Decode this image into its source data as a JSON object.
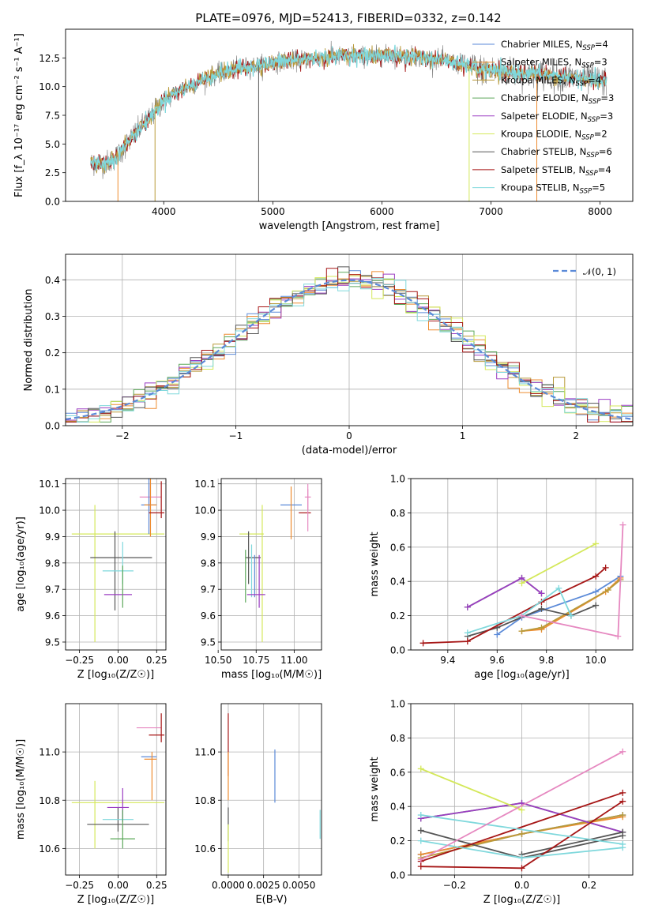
{
  "figure": {
    "title": "PLATE=0976, MJD=52413, FIBERID=0332, z=0.142"
  },
  "colors": {
    "chabrier_miles": "#5b8ad8",
    "salpeter_miles": "#ee8c30",
    "kroupa_miles": "#b89a3a",
    "chabrier_elodie": "#5ca85a",
    "salpeter_elodie": "#9b3cc2",
    "kroupa_elodie": "#d4e85a",
    "chabrier_stelib": "#555555",
    "salpeter_stelib": "#a61616",
    "kroupa_stelib": "#7fd8dc",
    "pink": "#e688c0",
    "gauss": "#5b8ad8",
    "grid": "#b0b0b0"
  },
  "chart_data": [
    {
      "id": "spectrum",
      "type": "line",
      "title": "PLATE=0976, MJD=52413, FIBERID=0332, z=0.142",
      "xlabel": "wavelength [Angstrom, rest frame]",
      "ylabel": "Flux [f_λ 10⁻¹⁷ erg cm⁻² s⁻¹ A⁻¹]",
      "xlim": [
        3100,
        8300
      ],
      "ylim": [
        0,
        15
      ],
      "xticks": [
        4000,
        5000,
        6000,
        7000,
        8000
      ],
      "yticks": [
        0.0,
        2.5,
        5.0,
        7.5,
        10.0,
        12.5
      ],
      "legend_position": "top-right",
      "legend": [
        "Chabrier MILES, N_SSP=4",
        "Salpeter MILES, N_SSP=3",
        "Kroupa MILES, N_SSP=4",
        "Chabrier ELODIE, N_SSP=3",
        "Salpeter ELODIE, N_SSP=3",
        "Kroupa ELODIE, N_SSP=2",
        "Chabrier STELIB, N_SSP=6",
        "Salpeter STELIB, N_SSP=4",
        "Kroupa STELIB, N_SSP=5"
      ],
      "continuum": {
        "x": [
          3330,
          3500,
          3600,
          3700,
          3800,
          3900,
          4000,
          4100,
          4200,
          4300,
          4400,
          4500,
          4600,
          4700,
          4800,
          4900,
          5000,
          5100,
          5200,
          5300,
          5400,
          5500,
          5600,
          5700,
          5800,
          5900,
          6000,
          6100,
          6200,
          6300,
          6400,
          6500,
          6600,
          6700,
          6800,
          6900,
          7000,
          7100,
          7200,
          7300,
          7400,
          7500,
          7600,
          7700,
          7800,
          7900,
          8000,
          8060
        ],
        "y": [
          3.3,
          3.4,
          4.2,
          5.5,
          6.5,
          7.6,
          8.8,
          9.4,
          9.9,
          10.3,
          10.8,
          11.1,
          11.4,
          11.6,
          11.8,
          11.9,
          12.1,
          12.2,
          12.3,
          12.4,
          12.5,
          12.6,
          12.6,
          12.7,
          12.7,
          12.6,
          12.7,
          12.7,
          12.6,
          12.6,
          12.5,
          12.4,
          12.2,
          12.0,
          11.8,
          11.5,
          11.4,
          11.3,
          11.2,
          11.2,
          11.1,
          11.0,
          10.9,
          10.8,
          10.7,
          10.6,
          10.5,
          10.4
        ]
      },
      "dips": [
        {
          "x": 3580,
          "y": 0.0
        },
        {
          "x": 3920,
          "y": 0.0
        },
        {
          "x": 4870,
          "y": 0.0
        },
        {
          "x": 6800,
          "y": 0.0
        },
        {
          "x": 7420,
          "y": 0.0
        }
      ]
    },
    {
      "id": "residuals",
      "type": "line",
      "xlabel": "(data-model)/error",
      "ylabel": "Normed distribution",
      "xlim": [
        -2.5,
        2.5
      ],
      "ylim": [
        0,
        0.47
      ],
      "xticks": [
        -2,
        -1,
        0,
        1,
        2
      ],
      "yticks": [
        0.0,
        0.1,
        0.2,
        0.3,
        0.4
      ],
      "grid": true,
      "legend_position": "top-right",
      "gauss_label": "𝒩(0, 1)",
      "bin_width": 0.1
    },
    {
      "id": "age-vs-Z",
      "type": "scatter",
      "xlabel": "Z [log₁₀(Z/Z☉)]",
      "ylabel": "age  [log₁₀(age/yr)]",
      "xlim": [
        -0.34,
        0.31
      ],
      "ylim": [
        9.47,
        10.12
      ],
      "xticks": [
        -0.25,
        0.0,
        0.25
      ],
      "yticks": [
        9.5,
        9.6,
        9.7,
        9.8,
        9.9,
        10.0,
        10.1
      ],
      "grid": true,
      "points": [
        {
          "c": "kroupa_elodie",
          "x": 0.0,
          "xerr": 0.3,
          "y": 9.91,
          "yerr": 0.0
        },
        {
          "c": "kroupa_elodie",
          "x": -0.15,
          "xerr": 0.0,
          "y": 9.76,
          "yerr": 0.26
        },
        {
          "c": "chabrier_stelib",
          "x": -0.02,
          "xerr": 0.0,
          "y": 9.77,
          "yerr": 0.15
        },
        {
          "c": "chabrier_stelib",
          "x": 0.02,
          "xerr": 0.2,
          "y": 9.82,
          "yerr": 0.0
        },
        {
          "c": "kroupa_stelib",
          "x": 0.03,
          "xerr": 0.0,
          "y": 9.8,
          "yerr": 0.08
        },
        {
          "c": "kroupa_stelib",
          "x": 0.0,
          "xerr": 0.1,
          "y": 9.77,
          "yerr": 0.0
        },
        {
          "c": "salpeter_elodie",
          "x": 0.0,
          "xerr": 0.09,
          "y": 9.68,
          "yerr": 0.0
        },
        {
          "c": "chabrier_elodie",
          "x": 0.03,
          "xerr": 0.0,
          "y": 9.71,
          "yerr": 0.08
        },
        {
          "c": "pink",
          "x": 0.21,
          "xerr": 0.07,
          "y": 10.05,
          "yerr": 0.05
        },
        {
          "c": "chabrier_miles",
          "x": 0.2,
          "xerr": 0.05,
          "y": 10.02,
          "yerr": 0.11
        },
        {
          "c": "salpeter_miles",
          "x": 0.21,
          "xerr": 0.04,
          "y": 10.02,
          "yerr": 0.12
        },
        {
          "c": "salpeter_stelib",
          "x": 0.25,
          "xerr": 0.05,
          "y": 9.99,
          "yerr": 0.0
        },
        {
          "c": "salpeter_stelib",
          "x": 0.28,
          "xerr": 0.0,
          "y": 10.04,
          "yerr": 0.07
        }
      ]
    },
    {
      "id": "age-vs-mass",
      "type": "scatter",
      "xlabel": "mass [log₁₀(M/M☉)]",
      "xlim": [
        10.52,
        11.18
      ],
      "ylim": [
        9.47,
        10.12
      ],
      "xticks": [
        10.5,
        10.75,
        11.0
      ],
      "yticks": [
        9.5,
        9.6,
        9.7,
        9.8,
        9.9,
        10.0,
        10.1
      ],
      "grid": true,
      "points": [
        {
          "c": "kroupa_elodie",
          "x": 10.72,
          "xerr": 0.08,
          "y": 9.91,
          "yerr": 0.0
        },
        {
          "c": "kroupa_elodie",
          "x": 10.79,
          "xerr": 0.0,
          "y": 9.76,
          "yerr": 0.26
        },
        {
          "c": "chabrier_stelib",
          "x": 10.7,
          "xerr": 0.0,
          "y": 9.82,
          "yerr": 0.1
        },
        {
          "c": "chabrier_stelib",
          "x": 10.73,
          "xerr": 0.05,
          "y": 9.82,
          "yerr": 0.0
        },
        {
          "c": "kroupa_stelib",
          "x": 10.72,
          "xerr": 0.0,
          "y": 9.77,
          "yerr": 0.1
        },
        {
          "c": "chabrier_miles",
          "x": 10.74,
          "xerr": 0.0,
          "y": 9.75,
          "yerr": 0.08
        },
        {
          "c": "salpeter_elodie",
          "x": 10.75,
          "xerr": 0.06,
          "y": 9.68,
          "yerr": 0.0
        },
        {
          "c": "salpeter_elodie",
          "x": 10.77,
          "xerr": 0.0,
          "y": 9.73,
          "yerr": 0.1
        },
        {
          "c": "chabrier_elodie",
          "x": 10.68,
          "xerr": 0.0,
          "y": 9.75,
          "yerr": 0.1
        },
        {
          "c": "chabrier_miles",
          "x": 10.98,
          "xerr": 0.07,
          "y": 10.02,
          "yerr": 0.0
        },
        {
          "c": "salpeter_miles",
          "x": 10.98,
          "xerr": 0.0,
          "y": 9.99,
          "yerr": 0.1
        },
        {
          "c": "pink",
          "x": 11.09,
          "xerr": 0.02,
          "y": 10.05,
          "yerr": 0.05
        },
        {
          "c": "salpeter_stelib",
          "x": 11.07,
          "xerr": 0.04,
          "y": 9.99,
          "yerr": 0.0
        },
        {
          "c": "pink",
          "x": 11.09,
          "xerr": 0.0,
          "y": 10.0,
          "yerr": 0.08
        }
      ]
    },
    {
      "id": "weight-vs-age",
      "type": "line",
      "xlabel": "age  [log₁₀(age/yr)]",
      "ylabel": "mass weight",
      "xlim": [
        9.25,
        10.15
      ],
      "ylim": [
        0,
        1
      ],
      "xticks": [
        9.4,
        9.6,
        9.8,
        10.0
      ],
      "yticks": [
        0.0,
        0.2,
        0.4,
        0.6,
        0.8,
        1.0
      ],
      "grid": true,
      "series": [
        {
          "c": "chabrier_miles",
          "x": [
            9.6,
            9.7,
            10.0,
            10.1
          ],
          "y": [
            0.09,
            0.19,
            0.34,
            0.43
          ]
        },
        {
          "c": "salpeter_miles",
          "x": [
            9.7,
            9.78,
            10.04,
            10.1
          ],
          "y": [
            0.11,
            0.12,
            0.34,
            0.42
          ]
        },
        {
          "c": "kroupa_miles",
          "x": [
            9.7,
            9.78,
            10.05,
            10.1
          ],
          "y": [
            0.11,
            0.13,
            0.35,
            0.41
          ]
        },
        {
          "c": "chabrier_elodie",
          "x": [
            9.48,
            9.7,
            9.78
          ],
          "y": [
            0.25,
            0.42,
            0.33
          ]
        },
        {
          "c": "salpeter_elodie",
          "x": [
            9.48,
            9.7,
            9.78
          ],
          "y": [
            0.25,
            0.42,
            0.33
          ]
        },
        {
          "c": "kroupa_elodie",
          "x": [
            9.7,
            10.0
          ],
          "y": [
            0.39,
            0.62
          ]
        },
        {
          "c": "chabrier_stelib",
          "x": [
            9.48,
            9.6,
            9.78,
            9.9,
            10.0
          ],
          "y": [
            0.08,
            0.13,
            0.24,
            0.2,
            0.26
          ]
        },
        {
          "c": "salpeter_stelib",
          "x": [
            9.3,
            9.48,
            9.78,
            10.0,
            10.04
          ],
          "y": [
            0.04,
            0.05,
            0.28,
            0.43,
            0.48
          ]
        },
        {
          "c": "kroupa_stelib",
          "x": [
            9.48,
            9.7,
            9.85,
            9.9
          ],
          "y": [
            0.1,
            0.2,
            0.36,
            0.2
          ]
        },
        {
          "c": "pink",
          "x": [
            9.7,
            10.09,
            10.11
          ],
          "y": [
            0.2,
            0.08,
            0.73
          ]
        }
      ]
    },
    {
      "id": "mass-vs-Z",
      "type": "scatter",
      "xlabel": "Z [log₁₀(Z/Z☉)]",
      "ylabel": "mass [log₁₀(M/M☉)]",
      "xlim": [
        -0.34,
        0.31
      ],
      "ylim": [
        10.49,
        11.2
      ],
      "xticks": [
        -0.25,
        0.0,
        0.25
      ],
      "yticks": [
        10.6,
        10.8,
        11.0
      ],
      "grid": true,
      "points": [
        {
          "c": "kroupa_elodie",
          "x": 0.0,
          "xerr": 0.3,
          "y": 10.79,
          "yerr": 0.0
        },
        {
          "c": "kroupa_elodie",
          "x": -0.15,
          "xerr": 0.0,
          "y": 10.74,
          "yerr": 0.14
        },
        {
          "c": "chabrier_stelib",
          "x": 0.0,
          "xerr": 0.2,
          "y": 10.7,
          "yerr": 0.0
        },
        {
          "c": "chabrier_stelib",
          "x": 0.0,
          "xerr": 0.0,
          "y": 10.72,
          "yerr": 0.05
        },
        {
          "c": "salpeter_elodie",
          "x": 0.0,
          "xerr": 0.07,
          "y": 10.77,
          "yerr": 0.0
        },
        {
          "c": "salpeter_elodie",
          "x": 0.03,
          "xerr": 0.0,
          "y": 10.78,
          "yerr": 0.07
        },
        {
          "c": "kroupa_stelib",
          "x": 0.0,
          "xerr": 0.1,
          "y": 10.72,
          "yerr": 0.0
        },
        {
          "c": "chabrier_elodie",
          "x": 0.03,
          "xerr": 0.0,
          "y": 10.68,
          "yerr": 0.08
        },
        {
          "c": "chabrier_elodie",
          "x": 0.03,
          "xerr": 0.08,
          "y": 10.64,
          "yerr": 0.0
        },
        {
          "c": "pink",
          "x": 0.2,
          "xerr": 0.08,
          "y": 11.1,
          "yerr": 0.0
        },
        {
          "c": "chabrier_miles",
          "x": 0.2,
          "xerr": 0.05,
          "y": 10.98,
          "yerr": 0.0
        },
        {
          "c": "salpeter_miles",
          "x": 0.21,
          "xerr": 0.04,
          "y": 10.97,
          "yerr": 0.0
        },
        {
          "c": "salpeter_miles",
          "x": 0.22,
          "xerr": 0.0,
          "y": 10.9,
          "yerr": 0.1
        },
        {
          "c": "salpeter_stelib",
          "x": 0.25,
          "xerr": 0.05,
          "y": 11.07,
          "yerr": 0.0
        },
        {
          "c": "salpeter_stelib",
          "x": 0.28,
          "xerr": 0.0,
          "y": 11.1,
          "yerr": 0.06
        }
      ]
    },
    {
      "id": "mass-vs-ebv",
      "type": "scatter",
      "xlabel": "E(B-V)",
      "xlim": [
        -0.0005,
        0.0066
      ],
      "ylim": [
        10.49,
        11.2
      ],
      "xticks": [
        0.0,
        0.0025,
        0.005
      ],
      "xticklabels": [
        "0.0000",
        "0.0025",
        "0.0050"
      ],
      "yticks": [
        10.6,
        10.8,
        11.0
      ],
      "grid": true,
      "points": [
        {
          "c": "salpeter_stelib",
          "x": 0.0,
          "xerr": 0.0,
          "y": 11.03,
          "yerr": 0.13
        },
        {
          "c": "salpeter_miles",
          "x": 0.0,
          "xerr": 0.0,
          "y": 10.9,
          "yerr": 0.1
        },
        {
          "c": "chabrier_stelib",
          "x": 0.0,
          "xerr": 0.0,
          "y": 10.7,
          "yerr": 0.07
        },
        {
          "c": "kroupa_elodie",
          "x": 0.0,
          "xerr": 0.0,
          "y": 10.6,
          "yerr": 0.1
        },
        {
          "c": "chabrier_miles",
          "x": 0.0033,
          "xerr": 0.0,
          "y": 10.9,
          "yerr": 0.11
        },
        {
          "c": "kroupa_stelib",
          "x": 0.0065,
          "xerr": 0.0,
          "y": 10.7,
          "yerr": 0.06
        }
      ]
    },
    {
      "id": "weight-vs-Z",
      "type": "line",
      "xlabel": "Z [log₁₀(Z/Z☉)]",
      "ylabel": "mass weight",
      "xlim": [
        -0.33,
        0.33
      ],
      "ylim": [
        0,
        1
      ],
      "xticks": [
        -0.2,
        0.0,
        0.2
      ],
      "yticks": [
        0.0,
        0.2,
        0.4,
        0.6,
        0.8,
        1.0
      ],
      "grid": true,
      "series": [
        {
          "c": "chabrier_miles",
          "x": [
            -0.3,
            0.0,
            0.3
          ],
          "y": [
            0.12,
            0.24,
            0.35
          ]
        },
        {
          "c": "salpeter_miles",
          "x": [
            -0.3,
            0.0,
            0.3
          ],
          "y": [
            0.12,
            0.24,
            0.34
          ]
        },
        {
          "c": "kroupa_miles",
          "x": [
            -0.3,
            0.0,
            0.3
          ],
          "y": [
            0.1,
            0.24,
            0.35
          ]
        },
        {
          "c": "chabrier_elodie",
          "x": [
            -0.3,
            0.0,
            0.3
          ],
          "y": [
            0.33,
            0.42,
            0.25
          ]
        },
        {
          "c": "salpeter_elodie",
          "x": [
            -0.3,
            0.0,
            0.3
          ],
          "y": [
            0.33,
            0.42,
            0.25
          ]
        },
        {
          "c": "kroupa_elodie",
          "x": [
            -0.3,
            0.0
          ],
          "y": [
            0.62,
            0.38
          ]
        },
        {
          "c": "chabrier_stelib",
          "x": [
            -0.3,
            0.0,
            0.3
          ],
          "y": [
            0.26,
            0.1,
            0.23
          ]
        },
        {
          "c": "chabrier_stelib",
          "x": [
            0.0,
            0.3
          ],
          "y": [
            0.12,
            0.25
          ]
        },
        {
          "c": "salpeter_stelib",
          "x": [
            -0.3,
            0.0,
            0.3
          ],
          "y": [
            0.05,
            0.04,
            0.43
          ]
        },
        {
          "c": "salpeter_stelib",
          "x": [
            -0.3,
            0.3
          ],
          "y": [
            0.08,
            0.48
          ]
        },
        {
          "c": "kroupa_stelib",
          "x": [
            -0.3,
            0.0,
            0.3
          ],
          "y": [
            0.2,
            0.1,
            0.16
          ]
        },
        {
          "c": "kroupa_stelib",
          "x": [
            -0.3,
            0.3
          ],
          "y": [
            0.35,
            0.18
          ]
        },
        {
          "c": "pink",
          "x": [
            -0.3,
            0.3
          ],
          "y": [
            0.09,
            0.72
          ]
        }
      ]
    }
  ]
}
